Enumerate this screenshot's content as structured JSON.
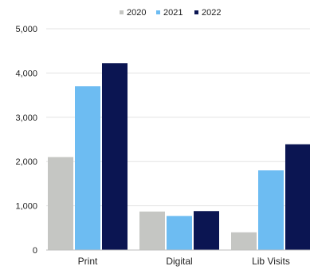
{
  "chart_data": {
    "type": "bar",
    "categories": [
      "Print",
      "Digital",
      "Lib Visits"
    ],
    "series": [
      {
        "name": "2020",
        "color": "#c5c6c3",
        "values": [
          2100,
          870,
          400
        ]
      },
      {
        "name": "2021",
        "color": "#6dbcf2",
        "values": [
          3700,
          770,
          1800
        ]
      },
      {
        "name": "2022",
        "color": "#0b1552",
        "values": [
          4220,
          880,
          2390
        ]
      }
    ],
    "yticks": [
      "0",
      "1,000",
      "2,000",
      "3,000",
      "4,000",
      "5,000"
    ],
    "ylim": [
      0,
      5000
    ],
    "grid": true,
    "legend_position": "top"
  }
}
